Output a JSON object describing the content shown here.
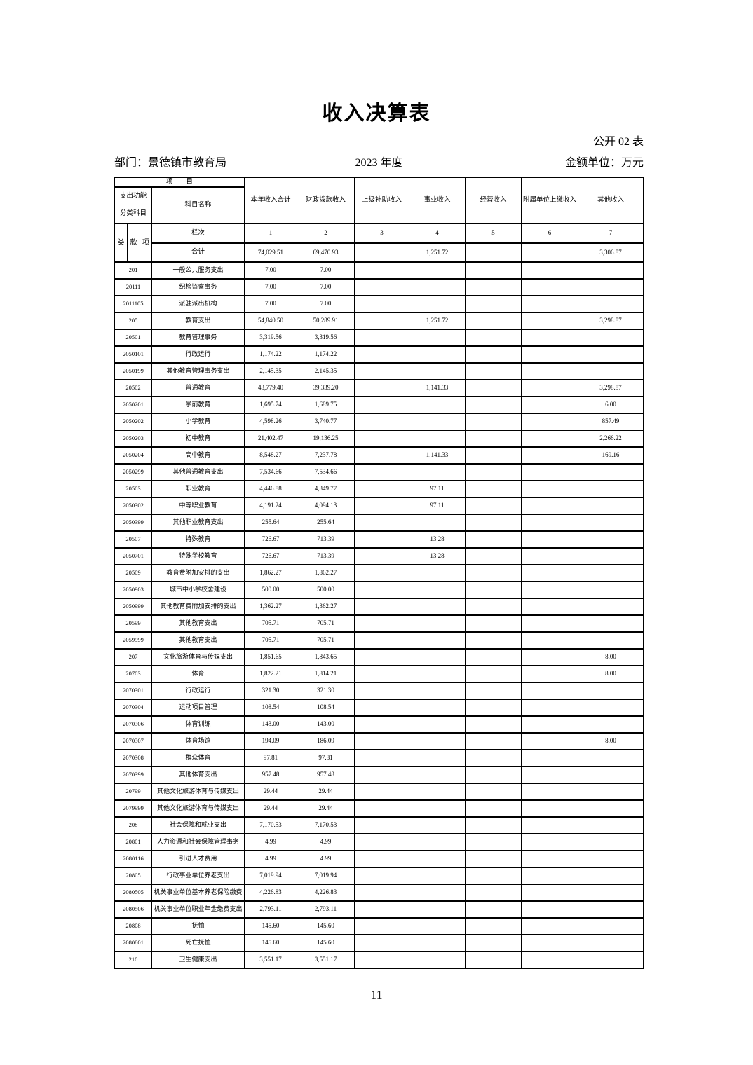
{
  "page": {
    "title": "收入决算表",
    "table_label": "公开 02 表",
    "department": "部门：景德镇市教育局",
    "year": "2023 年度",
    "unit": "金额单位：万元",
    "footer_dash": "—",
    "page_number": "11"
  },
  "table": {
    "corner": {
      "project": "项　　目",
      "expense_function": "支出功能\n分类科目",
      "subject_name": "科目名称",
      "cls": "类",
      "kuan": "款",
      "xiang": "项",
      "lanci": "栏次"
    },
    "columns": [
      "本年收入合计",
      "财政拨款收入",
      "上级补助收入",
      "事业收入",
      "经营收入",
      "附属单位上缴收入",
      "其他收入"
    ],
    "column_numbers": [
      "1",
      "2",
      "3",
      "4",
      "5",
      "6",
      "7"
    ],
    "total_row": {
      "label": "合计",
      "values": [
        "74,029.51",
        "69,470.93",
        "",
        "1,251.72",
        "",
        "",
        "3,306.87"
      ]
    },
    "rows": [
      {
        "code": "201",
        "name": "一般公共服务支出",
        "values": [
          "7.00",
          "7.00",
          "",
          "",
          "",
          "",
          ""
        ]
      },
      {
        "code": "20111",
        "name": "纪检监察事务",
        "values": [
          "7.00",
          "7.00",
          "",
          "",
          "",
          "",
          ""
        ]
      },
      {
        "code": "2011105",
        "name": "派驻派出机构",
        "values": [
          "7.00",
          "7.00",
          "",
          "",
          "",
          "",
          ""
        ]
      },
      {
        "code": "205",
        "name": "教育支出",
        "values": [
          "54,840.50",
          "50,289.91",
          "",
          "1,251.72",
          "",
          "",
          "3,298.87"
        ]
      },
      {
        "code": "20501",
        "name": "教育管理事务",
        "values": [
          "3,319.56",
          "3,319.56",
          "",
          "",
          "",
          "",
          ""
        ]
      },
      {
        "code": "2050101",
        "name": "行政运行",
        "values": [
          "1,174.22",
          "1,174.22",
          "",
          "",
          "",
          "",
          ""
        ]
      },
      {
        "code": "2050199",
        "name": "其他教育管理事务支出",
        "values": [
          "2,145.35",
          "2,145.35",
          "",
          "",
          "",
          "",
          ""
        ]
      },
      {
        "code": "20502",
        "name": "普通教育",
        "values": [
          "43,779.40",
          "39,339.20",
          "",
          "1,141.33",
          "",
          "",
          "3,298.87"
        ]
      },
      {
        "code": "2050201",
        "name": "学前教育",
        "values": [
          "1,695.74",
          "1,689.75",
          "",
          "",
          "",
          "",
          "6.00"
        ]
      },
      {
        "code": "2050202",
        "name": "小学教育",
        "values": [
          "4,598.26",
          "3,740.77",
          "",
          "",
          "",
          "",
          "857.49"
        ]
      },
      {
        "code": "2050203",
        "name": "初中教育",
        "values": [
          "21,402.47",
          "19,136.25",
          "",
          "",
          "",
          "",
          "2,266.22"
        ]
      },
      {
        "code": "2050204",
        "name": "高中教育",
        "values": [
          "8,548.27",
          "7,237.78",
          "",
          "1,141.33",
          "",
          "",
          "169.16"
        ]
      },
      {
        "code": "2050299",
        "name": "其他普通教育支出",
        "values": [
          "7,534.66",
          "7,534.66",
          "",
          "",
          "",
          "",
          ""
        ]
      },
      {
        "code": "20503",
        "name": "职业教育",
        "values": [
          "4,446.88",
          "4,349.77",
          "",
          "97.11",
          "",
          "",
          ""
        ]
      },
      {
        "code": "2050302",
        "name": "中等职业教育",
        "values": [
          "4,191.24",
          "4,094.13",
          "",
          "97.11",
          "",
          "",
          ""
        ]
      },
      {
        "code": "2050399",
        "name": "其他职业教育支出",
        "values": [
          "255.64",
          "255.64",
          "",
          "",
          "",
          "",
          ""
        ]
      },
      {
        "code": "20507",
        "name": "特殊教育",
        "values": [
          "726.67",
          "713.39",
          "",
          "13.28",
          "",
          "",
          ""
        ]
      },
      {
        "code": "2050701",
        "name": "特殊学校教育",
        "values": [
          "726.67",
          "713.39",
          "",
          "13.28",
          "",
          "",
          ""
        ]
      },
      {
        "code": "20509",
        "name": "教育费附加安排的支出",
        "values": [
          "1,862.27",
          "1,862.27",
          "",
          "",
          "",
          "",
          ""
        ]
      },
      {
        "code": "2050903",
        "name": "城市中小学校舍建设",
        "values": [
          "500.00",
          "500.00",
          "",
          "",
          "",
          "",
          ""
        ]
      },
      {
        "code": "2050999",
        "name": "其他教育费附加安排的支出",
        "values": [
          "1,362.27",
          "1,362.27",
          "",
          "",
          "",
          "",
          ""
        ]
      },
      {
        "code": "20599",
        "name": "其他教育支出",
        "values": [
          "705.71",
          "705.71",
          "",
          "",
          "",
          "",
          ""
        ]
      },
      {
        "code": "2059999",
        "name": "其他教育支出",
        "values": [
          "705.71",
          "705.71",
          "",
          "",
          "",
          "",
          ""
        ]
      },
      {
        "code": "207",
        "name": "文化旅游体育与传媒支出",
        "values": [
          "1,851.65",
          "1,843.65",
          "",
          "",
          "",
          "",
          "8.00"
        ]
      },
      {
        "code": "20703",
        "name": "体育",
        "values": [
          "1,822.21",
          "1,814.21",
          "",
          "",
          "",
          "",
          "8.00"
        ]
      },
      {
        "code": "2070301",
        "name": "行政运行",
        "values": [
          "321.30",
          "321.30",
          "",
          "",
          "",
          "",
          ""
        ]
      },
      {
        "code": "2070304",
        "name": "运动项目管理",
        "values": [
          "108.54",
          "108.54",
          "",
          "",
          "",
          "",
          ""
        ]
      },
      {
        "code": "2070306",
        "name": "体育训练",
        "values": [
          "143.00",
          "143.00",
          "",
          "",
          "",
          "",
          ""
        ]
      },
      {
        "code": "2070307",
        "name": "体育场馆",
        "values": [
          "194.09",
          "186.09",
          "",
          "",
          "",
          "",
          "8.00"
        ]
      },
      {
        "code": "2070308",
        "name": "群众体育",
        "values": [
          "97.81",
          "97.81",
          "",
          "",
          "",
          "",
          ""
        ]
      },
      {
        "code": "2070399",
        "name": "其他体育支出",
        "values": [
          "957.48",
          "957.48",
          "",
          "",
          "",
          "",
          ""
        ]
      },
      {
        "code": "20799",
        "name": "其他文化旅游体育与传媒支出",
        "values": [
          "29.44",
          "29.44",
          "",
          "",
          "",
          "",
          ""
        ]
      },
      {
        "code": "2079999",
        "name": "其他文化旅游体育与传媒支出",
        "values": [
          "29.44",
          "29.44",
          "",
          "",
          "",
          "",
          ""
        ]
      },
      {
        "code": "208",
        "name": "社会保障和就业支出",
        "values": [
          "7,170.53",
          "7,170.53",
          "",
          "",
          "",
          "",
          ""
        ]
      },
      {
        "code": "20801",
        "name": "人力资源和社会保障管理事务",
        "values": [
          "4.99",
          "4.99",
          "",
          "",
          "",
          "",
          ""
        ]
      },
      {
        "code": "2080116",
        "name": "引进人才费用",
        "values": [
          "4.99",
          "4.99",
          "",
          "",
          "",
          "",
          ""
        ]
      },
      {
        "code": "20805",
        "name": "行政事业单位养老支出",
        "values": [
          "7,019.94",
          "7,019.94",
          "",
          "",
          "",
          "",
          ""
        ]
      },
      {
        "code": "2080505",
        "name": "机关事业单位基本养老保险缴费",
        "values": [
          "4,226.83",
          "4,226.83",
          "",
          "",
          "",
          "",
          ""
        ]
      },
      {
        "code": "2080506",
        "name": "机关事业单位职业年金缴费支出",
        "values": [
          "2,793.11",
          "2,793.11",
          "",
          "",
          "",
          "",
          ""
        ]
      },
      {
        "code": "20808",
        "name": "抚恤",
        "values": [
          "145.60",
          "145.60",
          "",
          "",
          "",
          "",
          ""
        ]
      },
      {
        "code": "2080801",
        "name": "死亡抚恤",
        "values": [
          "145.60",
          "145.60",
          "",
          "",
          "",
          "",
          ""
        ]
      },
      {
        "code": "210",
        "name": "卫生健康支出",
        "values": [
          "3,551.17",
          "3,551.17",
          "",
          "",
          "",
          "",
          ""
        ]
      }
    ]
  }
}
